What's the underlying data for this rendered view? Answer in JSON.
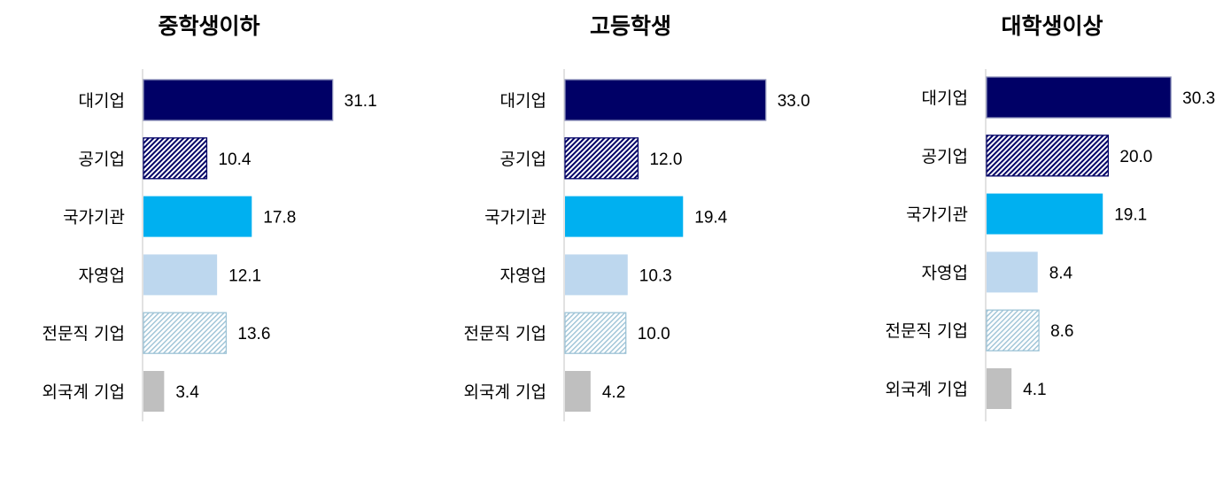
{
  "chart_data": [
    {
      "type": "bar",
      "orientation": "horizontal",
      "title": "중학생이하",
      "categories": [
        "대기업",
        "공기업",
        "국가기관",
        "자영업",
        "전문직 기업",
        "외국계 기업"
      ],
      "values": [
        31.1,
        10.4,
        17.8,
        12.1,
        13.6,
        3.4
      ]
    },
    {
      "type": "bar",
      "orientation": "horizontal",
      "title": "고등학생",
      "categories": [
        "대기업",
        "공기업",
        "국가기관",
        "자영업",
        "전문직 기업",
        "외국계 기업"
      ],
      "values": [
        33.0,
        12.0,
        19.4,
        10.3,
        10.0,
        4.2
      ]
    },
    {
      "type": "bar",
      "orientation": "horizontal",
      "title": "대학생이상",
      "categories": [
        "대기업",
        "공기업",
        "국가기관",
        "자영업",
        "전문직 기업",
        "외국계 기업"
      ],
      "values": [
        30.3,
        20.0,
        19.1,
        8.4,
        8.6,
        4.1
      ]
    }
  ],
  "styles": [
    {
      "fill": "#000066",
      "pattern": "solid"
    },
    {
      "fill": "#000066",
      "pattern": "dense-diagonal-hatch"
    },
    {
      "fill": "#00b0f0",
      "pattern": "solid"
    },
    {
      "fill": "#bdd7ee",
      "pattern": "solid"
    },
    {
      "fill": "#9dc3d6",
      "pattern": "light-diagonal-hatch"
    },
    {
      "fill": "#bfbfbf",
      "pattern": "solid"
    }
  ]
}
